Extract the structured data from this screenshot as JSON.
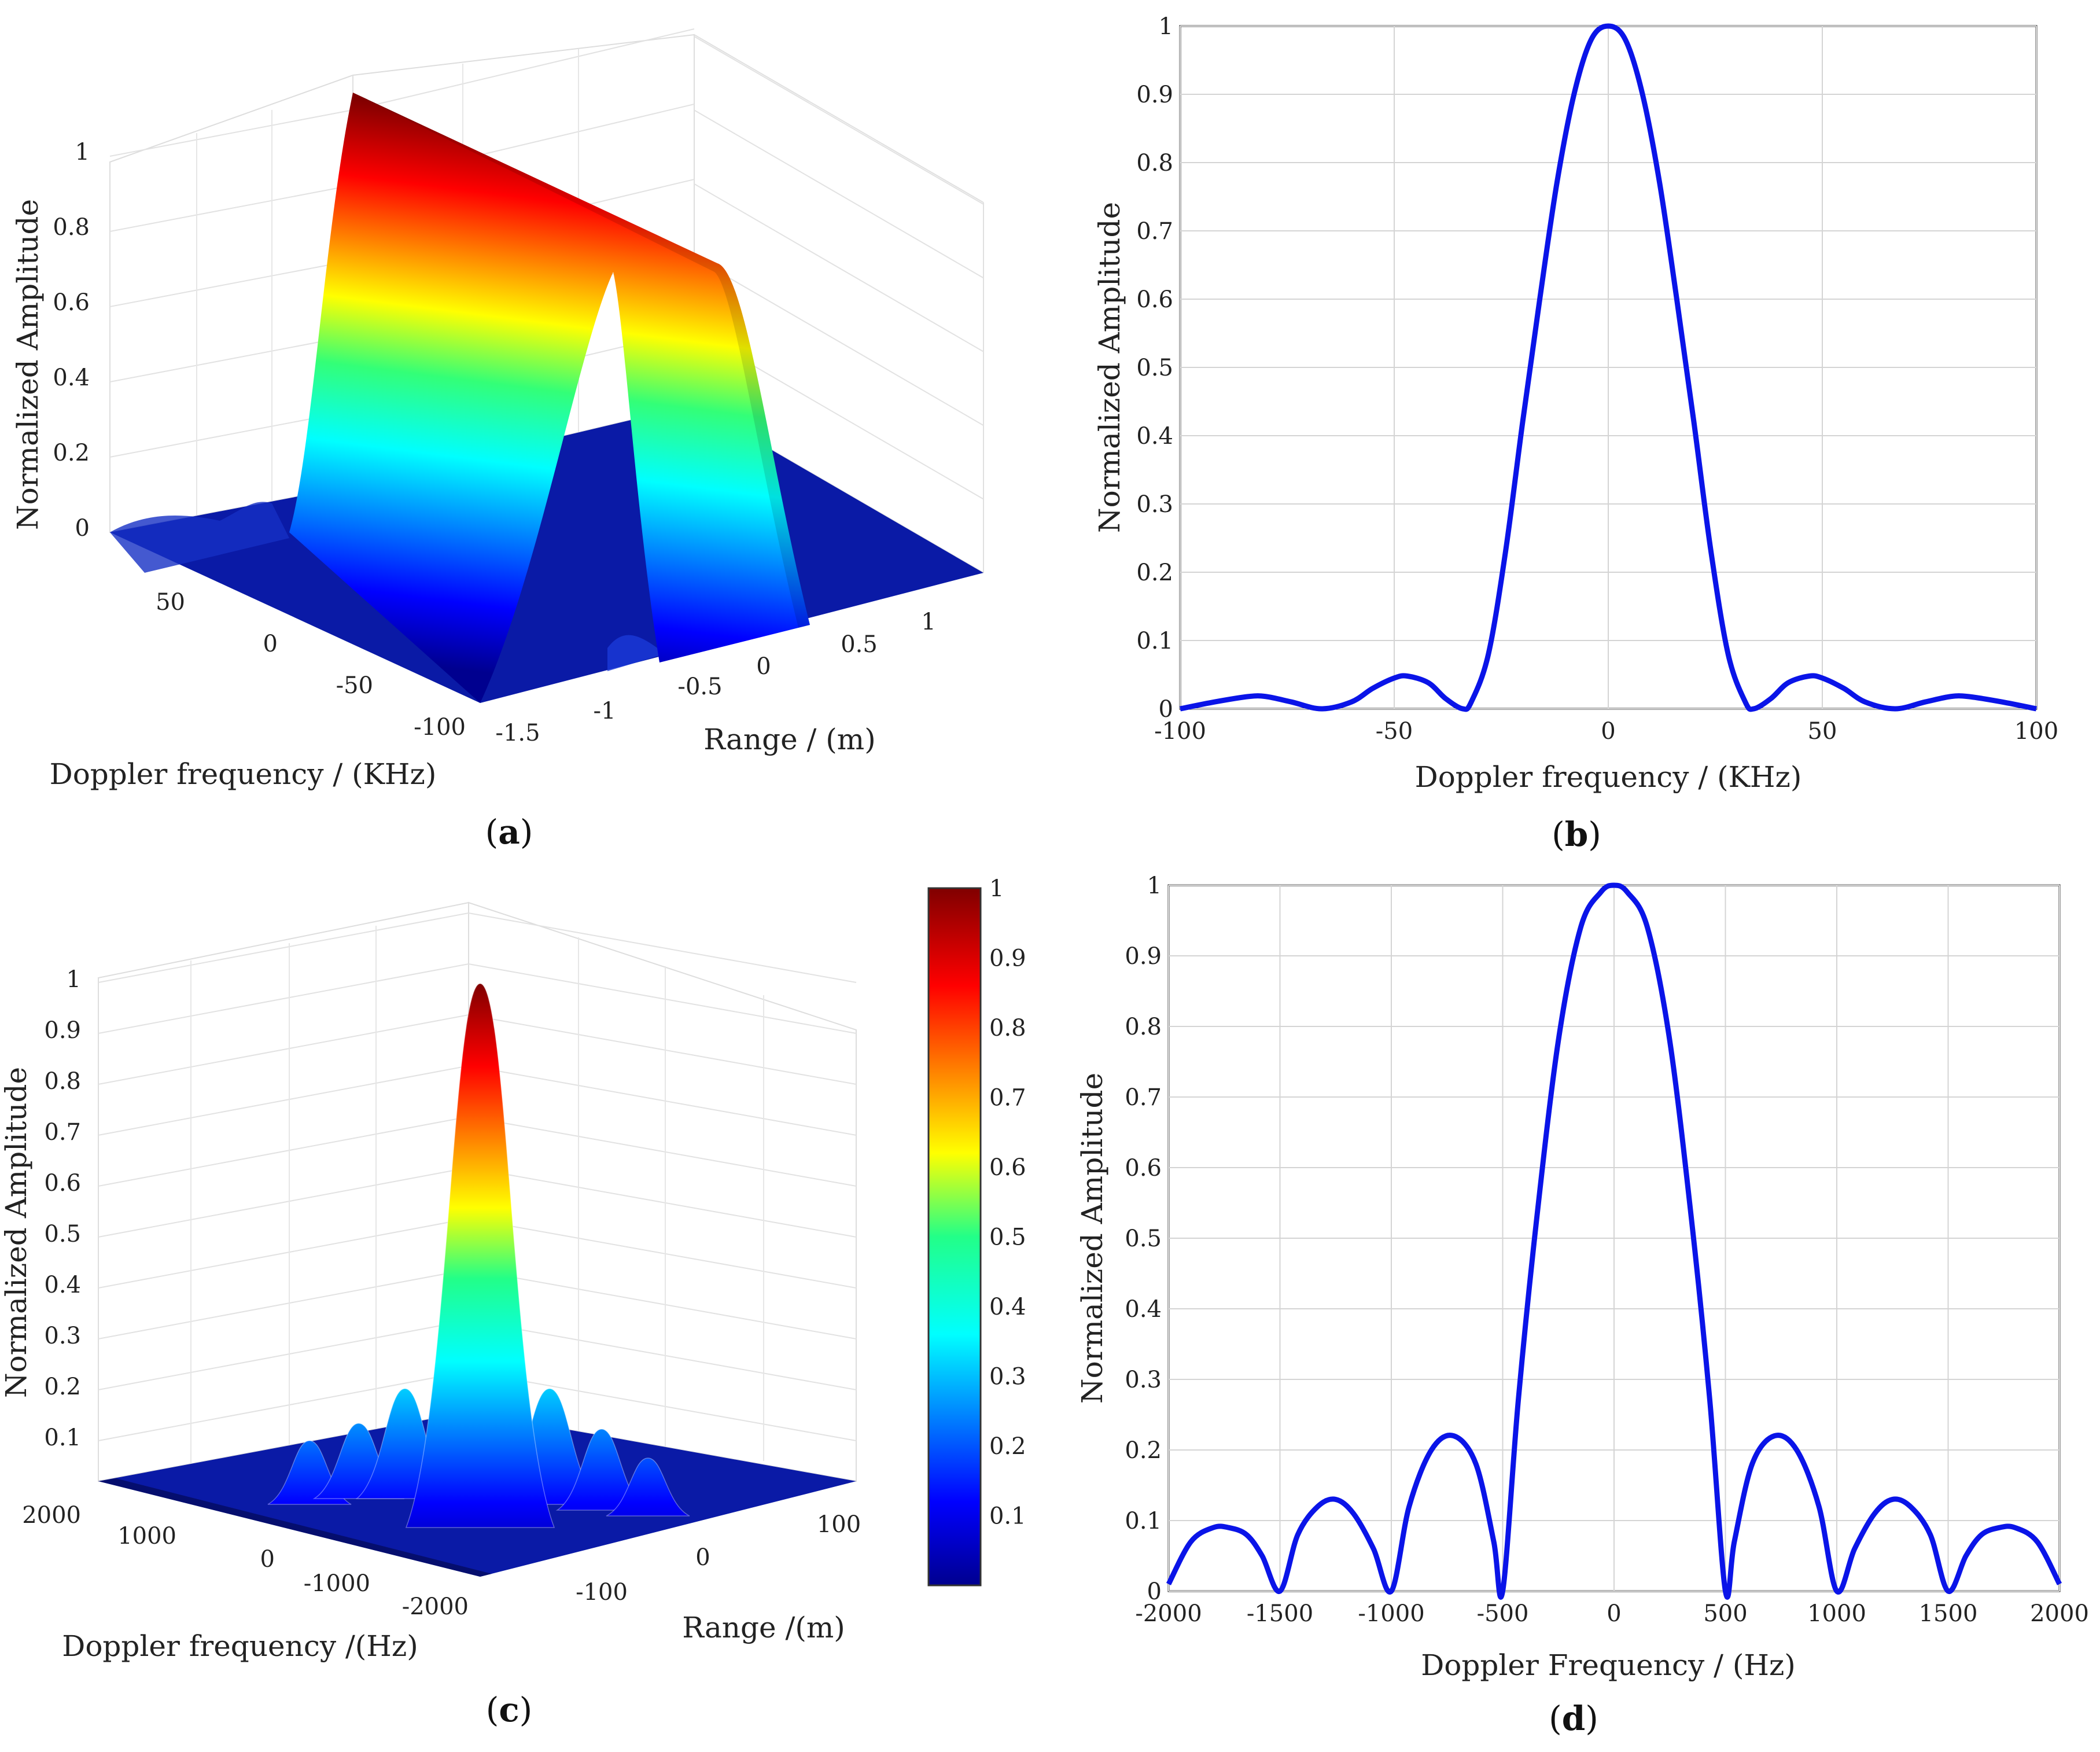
{
  "chart_data": [
    {
      "id": "a",
      "panel_label": "a",
      "type": "surface3d",
      "zlabel": "Normalized Amplitude",
      "xlabel": "Range / (m)",
      "ylabel": "Doppler frequency / (KHz)",
      "z_ticks": [
        "0",
        "0.2",
        "0.4",
        "0.6",
        "0.8",
        "1"
      ],
      "range_ticks": [
        "-1.5",
        "-1",
        "-0.5",
        "0",
        "0.5",
        "1"
      ],
      "doppler_ticks": [
        "50",
        "0",
        "-50",
        "-100"
      ],
      "zlim": [
        0,
        1.05
      ],
      "colormap": "jet"
    },
    {
      "id": "b",
      "panel_label": "b",
      "type": "line",
      "xlabel": "Doppler frequency / (KHz)",
      "ylabel": "Normalized Amplitude",
      "xlim": [
        -100,
        100
      ],
      "ylim": [
        0,
        1
      ],
      "xticks": [
        -100,
        -50,
        0,
        50,
        100
      ],
      "yticks": [
        0,
        0.1,
        0.2,
        0.3,
        0.4,
        0.5,
        0.6,
        0.7,
        0.8,
        0.9,
        1
      ],
      "grid": true,
      "color": "#0a14e8",
      "x": [
        -100,
        -92,
        -84,
        -80,
        -74,
        -67,
        -60,
        -55,
        -50,
        -47,
        -42,
        -38,
        -34,
        -32,
        -28,
        -24,
        -20,
        -16,
        -12,
        -8,
        -4,
        0,
        4,
        8,
        12,
        16,
        20,
        24,
        28,
        32,
        34,
        38,
        42,
        47,
        50,
        55,
        60,
        67,
        74,
        80,
        84,
        92,
        100
      ],
      "values": [
        0.0,
        0.01,
        0.018,
        0.018,
        0.01,
        0.0,
        0.01,
        0.03,
        0.045,
        0.048,
        0.038,
        0.015,
        0.0,
        0.01,
        0.08,
        0.23,
        0.42,
        0.6,
        0.77,
        0.9,
        0.98,
        1.0,
        0.98,
        0.9,
        0.77,
        0.6,
        0.42,
        0.23,
        0.08,
        0.01,
        0.0,
        0.015,
        0.038,
        0.048,
        0.045,
        0.03,
        0.01,
        0.0,
        0.01,
        0.018,
        0.018,
        0.01,
        0.0
      ]
    },
    {
      "id": "c",
      "panel_label": "c",
      "type": "surface3d",
      "zlabel": "Normalized Amplitude",
      "xlabel": "Range /(m)",
      "ylabel": "Doppler frequency /(Hz)",
      "z_ticks": [
        "0.1",
        "0.2",
        "0.3",
        "0.4",
        "0.5",
        "0.6",
        "0.7",
        "0.8",
        "0.9",
        "1"
      ],
      "range_ticks": [
        "-100",
        "0",
        "100"
      ],
      "doppler_ticks": [
        "2000",
        "1000",
        "0",
        "-1000",
        "-2000"
      ],
      "colorbar_ticks": [
        "0.1",
        "0.2",
        "0.3",
        "0.4",
        "0.5",
        "0.6",
        "0.7",
        "0.8",
        "0.9",
        "1"
      ],
      "colormap": "jet"
    },
    {
      "id": "d",
      "panel_label": "d",
      "type": "line",
      "xlabel": "Doppler Frequency / (Hz)",
      "ylabel": "Normalized Amplitude",
      "xlim": [
        -2000,
        2000
      ],
      "ylim": [
        0,
        1
      ],
      "xticks": [
        -2000,
        -1500,
        -1000,
        -500,
        0,
        500,
        1000,
        1500,
        2000
      ],
      "yticks": [
        0,
        0.1,
        0.2,
        0.3,
        0.4,
        0.5,
        0.6,
        0.7,
        0.8,
        0.9,
        1
      ],
      "grid": true,
      "color": "#0a14e8",
      "x": [
        -2000,
        -1900,
        -1800,
        -1730,
        -1650,
        -1580,
        -1500,
        -1420,
        -1330,
        -1250,
        -1170,
        -1080,
        -1000,
        -920,
        -820,
        -720,
        -620,
        -540,
        -500,
        -430,
        -350,
        -250,
        -150,
        -60,
        0,
        60,
        150,
        250,
        350,
        430,
        500,
        540,
        620,
        720,
        820,
        920,
        1000,
        1080,
        1170,
        1250,
        1330,
        1420,
        1500,
        1580,
        1650,
        1730,
        1800,
        1900,
        2000
      ],
      "values": [
        0.01,
        0.07,
        0.09,
        0.09,
        0.08,
        0.05,
        0.0,
        0.08,
        0.12,
        0.13,
        0.11,
        0.06,
        0.0,
        0.12,
        0.2,
        0.22,
        0.18,
        0.07,
        0.0,
        0.27,
        0.52,
        0.78,
        0.94,
        0.99,
        1.0,
        0.99,
        0.94,
        0.78,
        0.52,
        0.27,
        0.0,
        0.07,
        0.18,
        0.22,
        0.2,
        0.12,
        0.0,
        0.06,
        0.11,
        0.13,
        0.12,
        0.08,
        0.0,
        0.05,
        0.08,
        0.09,
        0.09,
        0.07,
        0.01
      ]
    }
  ],
  "colors": {
    "line": "#0a14e8",
    "grid": "#d4d4d4",
    "axes": "#333333"
  }
}
